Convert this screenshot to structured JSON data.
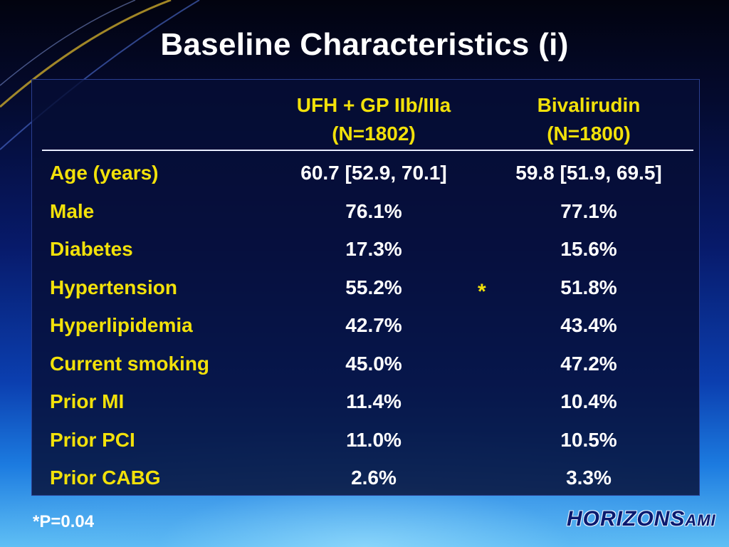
{
  "title": "Baseline Characteristics (i)",
  "columns": [
    {
      "line1": "UFH + GP IIb/IIIa",
      "line2": "(N=1802)"
    },
    {
      "line1": "Bivalirudin",
      "line2": "(N=1800)"
    }
  ],
  "rows": [
    {
      "label": "Age (years)",
      "ufh": "60.7 [52.9, 70.1]",
      "biv": "59.8 [51.9, 69.5]"
    },
    {
      "label": "Male",
      "ufh": "76.1%",
      "biv": "77.1%"
    },
    {
      "label": "Diabetes",
      "ufh": "17.3%",
      "biv": "15.6%"
    },
    {
      "label": "Hypertension",
      "ufh": "55.2%",
      "biv": "51.8%",
      "marker": "*"
    },
    {
      "label": "Hyperlipidemia",
      "ufh": "42.7%",
      "biv": "43.4%"
    },
    {
      "label": "Current smoking",
      "ufh": "45.0%",
      "biv": "47.2%"
    },
    {
      "label": "Prior MI",
      "ufh": "11.4%",
      "biv": "10.4%"
    },
    {
      "label": "Prior PCI",
      "ufh": "11.0%",
      "biv": "10.5%"
    },
    {
      "label": "Prior CABG",
      "ufh": "2.6%",
      "biv": "3.3%"
    }
  ],
  "footnote": "*P=0.04",
  "logo": {
    "main": "HORIZONS",
    "sub": "AMI"
  },
  "colors": {
    "header_text": "#f2e10a",
    "value_text": "#ffffff",
    "panel": "#060e34"
  }
}
